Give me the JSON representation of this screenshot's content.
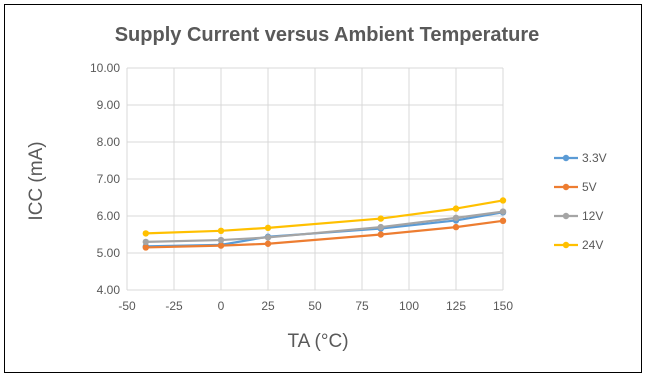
{
  "chart_data": {
    "type": "line",
    "title": "Supply Current versus Ambient Temperature",
    "xlabel": "TA (°C)",
    "ylabel": "ICC (mA)",
    "xlim": [
      -50,
      150
    ],
    "ylim": [
      4.0,
      10.0
    ],
    "x_ticks": [
      "-50",
      "-25",
      "0",
      "25",
      "50",
      "75",
      "100",
      "125",
      "150"
    ],
    "y_ticks": [
      "4.00",
      "5.00",
      "6.00",
      "7.00",
      "8.00",
      "9.00",
      "10.00"
    ],
    "x_tick_values": [
      -50,
      -25,
      0,
      25,
      50,
      75,
      100,
      125,
      150
    ],
    "y_tick_values": [
      4,
      5,
      6,
      7,
      8,
      9,
      10
    ],
    "grid": true,
    "legend_position": "right",
    "series": [
      {
        "name": "3.3V",
        "color": "#5B9BD5",
        "x": [
          -40,
          0,
          25,
          85,
          125,
          150
        ],
        "y": [
          5.18,
          5.22,
          5.44,
          5.66,
          5.88,
          6.1
        ]
      },
      {
        "name": "5V",
        "color": "#ED7D31",
        "x": [
          -40,
          0,
          25,
          85,
          125,
          150
        ],
        "y": [
          5.15,
          5.2,
          5.25,
          5.5,
          5.7,
          5.87
        ]
      },
      {
        "name": "12V",
        "color": "#A5A5A5",
        "x": [
          -40,
          0,
          25,
          85,
          125,
          150
        ],
        "y": [
          5.3,
          5.35,
          5.42,
          5.7,
          5.95,
          6.12
        ]
      },
      {
        "name": "24V",
        "color": "#FFC000",
        "x": [
          -40,
          0,
          25,
          85,
          125,
          150
        ],
        "y": [
          5.53,
          5.6,
          5.68,
          5.93,
          6.2,
          6.42
        ]
      }
    ]
  }
}
